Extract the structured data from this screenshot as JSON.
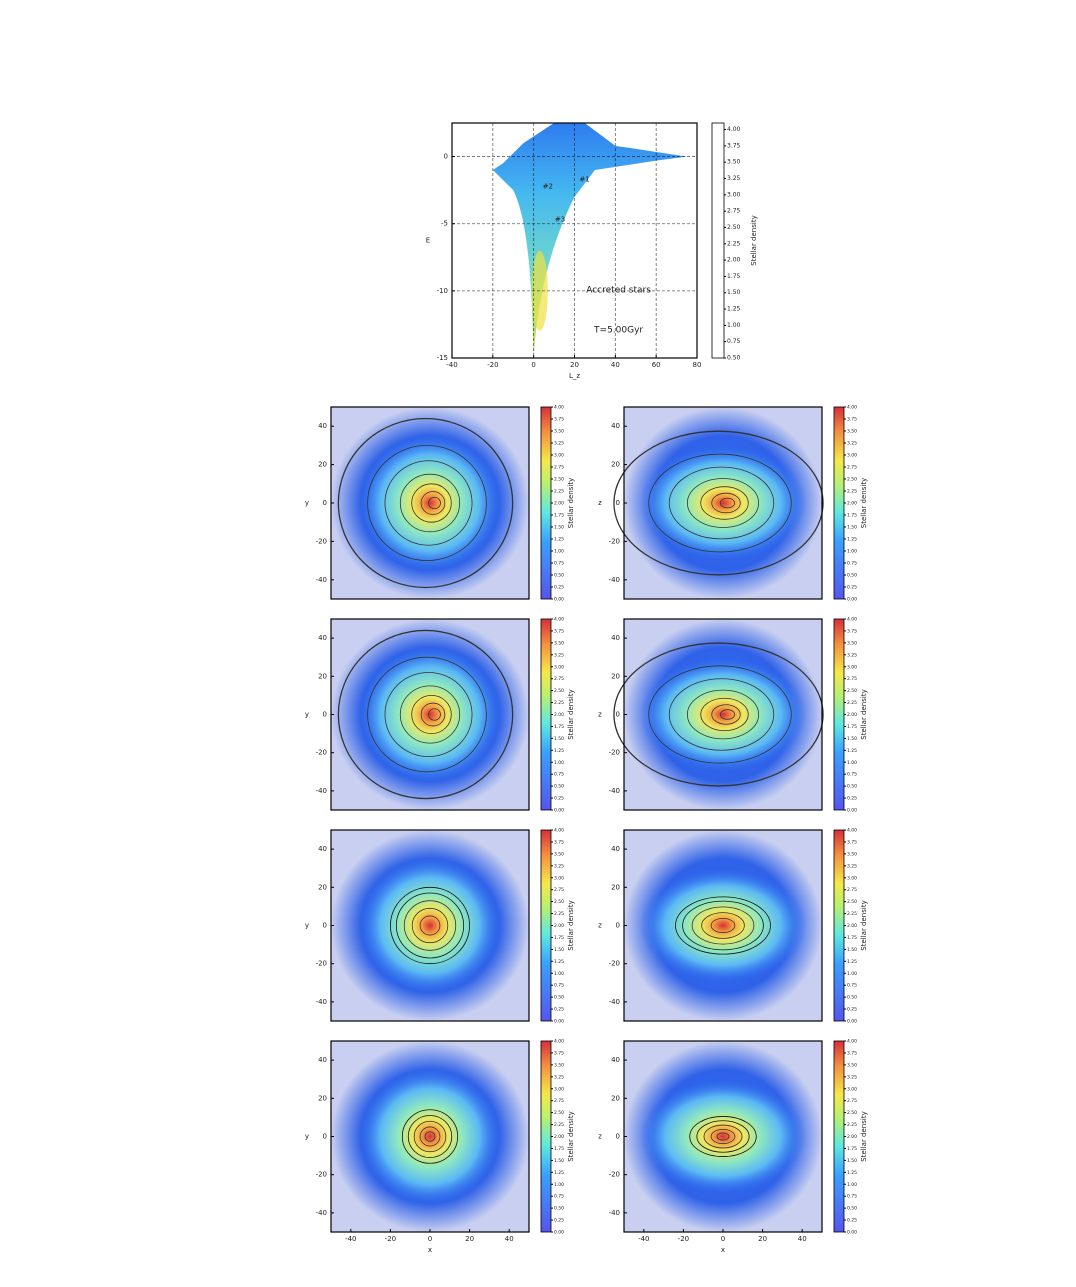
{
  "chart_data": [
    {
      "type": "heatmap",
      "xlabel": "L_z",
      "ylabel": "E",
      "xlim": [
        -40,
        80
      ],
      "ylim": [
        -15,
        2.5
      ],
      "xticks": [
        -40,
        -20,
        0,
        20,
        40,
        60,
        80
      ],
      "yticks": [
        0,
        -5,
        -10,
        -15
      ],
      "grid": true,
      "colorbar_label": "Stellar density",
      "colorbar_lim": [
        0.5,
        4.1
      ],
      "colorbar_ticks": [
        {
          "value": 0.5,
          "label": "0.50"
        },
        {
          "value": 0.75,
          "label": "0.75"
        },
        {
          "value": 1,
          "label": "1.00"
        },
        {
          "value": 1.25,
          "label": "1.25"
        },
        {
          "value": 1.5,
          "label": "1.50"
        },
        {
          "value": 1.75,
          "label": "1.75"
        },
        {
          "value": 2,
          "label": "2.00"
        },
        {
          "value": 2.25,
          "label": "2.25"
        },
        {
          "value": 2.5,
          "label": "2.50"
        },
        {
          "value": 2.75,
          "label": "2.75"
        },
        {
          "value": 3,
          "label": "3.00"
        },
        {
          "value": 3.25,
          "label": "3.25"
        },
        {
          "value": 3.5,
          "label": "3.50"
        },
        {
          "value": 3.75,
          "label": "3.75"
        },
        {
          "value": 4,
          "label": "4.00"
        }
      ],
      "annotations": [
        "#1",
        "#2",
        "#3",
        "Accreted stars",
        "T=5.00Gyr"
      ]
    },
    {
      "type": "density-map",
      "ylabel": "y",
      "xlim": [
        -50,
        50
      ],
      "ylim": [
        -50,
        50
      ],
      "yticks": [
        40,
        20,
        0,
        -20,
        -40
      ],
      "colorbar_label": "Stellar density",
      "colorbar_lim": [
        0,
        4
      ],
      "colorbar_ticks": [
        {
          "value": 0,
          "label": "0.00"
        },
        {
          "value": 0.25,
          "label": "0.25"
        },
        {
          "value": 0.5,
          "label": "0.50"
        },
        {
          "value": 0.75,
          "label": "0.75"
        },
        {
          "value": 1,
          "label": "1.00"
        },
        {
          "value": 1.25,
          "label": "1.25"
        },
        {
          "value": 1.5,
          "label": "1.50"
        },
        {
          "value": 1.75,
          "label": "1.75"
        },
        {
          "value": 2,
          "label": "2.00"
        },
        {
          "value": 2.25,
          "label": "2.25"
        },
        {
          "value": 2.5,
          "label": "2.50"
        },
        {
          "value": 2.75,
          "label": "2.75"
        },
        {
          "value": 3,
          "label": "3.00"
        },
        {
          "value": 3.25,
          "label": "3.25"
        },
        {
          "value": 3.5,
          "label": "3.50"
        },
        {
          "value": 3.75,
          "label": "3.75"
        },
        {
          "value": 4,
          "label": "4.00"
        }
      ]
    },
    {
      "type": "density-map",
      "ylabel": "z",
      "xlim": [
        -50,
        50
      ],
      "ylim": [
        -50,
        50
      ],
      "yticks": [
        40,
        20,
        0,
        -20,
        -40
      ],
      "colorbar_label": "Stellar density",
      "colorbar_lim": [
        0,
        4
      ],
      "colorbar_ticks": [
        {
          "value": 0,
          "label": "0.00"
        },
        {
          "value": 0.25,
          "label": "0.25"
        },
        {
          "value": 0.5,
          "label": "0.50"
        },
        {
          "value": 0.75,
          "label": "0.75"
        },
        {
          "value": 1,
          "label": "1.00"
        },
        {
          "value": 1.25,
          "label": "1.25"
        },
        {
          "value": 1.5,
          "label": "1.50"
        },
        {
          "value": 1.75,
          "label": "1.75"
        },
        {
          "value": 2,
          "label": "2.00"
        },
        {
          "value": 2.25,
          "label": "2.25"
        },
        {
          "value": 2.5,
          "label": "2.50"
        },
        {
          "value": 2.75,
          "label": "2.75"
        },
        {
          "value": 3,
          "label": "3.00"
        },
        {
          "value": 3.25,
          "label": "3.25"
        },
        {
          "value": 3.5,
          "label": "3.50"
        },
        {
          "value": 3.75,
          "label": "3.75"
        },
        {
          "value": 4,
          "label": "4.00"
        }
      ]
    },
    {
      "type": "density-map",
      "ylabel": "y",
      "xlim": [
        -50,
        50
      ],
      "ylim": [
        -50,
        50
      ],
      "yticks": [
        40,
        20,
        0,
        -20,
        -40
      ],
      "colorbar_label": "Stellar density",
      "colorbar_lim": [
        0,
        4
      ],
      "colorbar_ticks": [
        {
          "value": 0,
          "label": "0.00"
        },
        {
          "value": 0.25,
          "label": "0.25"
        },
        {
          "value": 0.5,
          "label": "0.50"
        },
        {
          "value": 0.75,
          "label": "0.75"
        },
        {
          "value": 1,
          "label": "1.00"
        },
        {
          "value": 1.25,
          "label": "1.25"
        },
        {
          "value": 1.5,
          "label": "1.50"
        },
        {
          "value": 1.75,
          "label": "1.75"
        },
        {
          "value": 2,
          "label": "2.00"
        },
        {
          "value": 2.25,
          "label": "2.25"
        },
        {
          "value": 2.5,
          "label": "2.50"
        },
        {
          "value": 2.75,
          "label": "2.75"
        },
        {
          "value": 3,
          "label": "3.00"
        },
        {
          "value": 3.25,
          "label": "3.25"
        },
        {
          "value": 3.5,
          "label": "3.50"
        },
        {
          "value": 3.75,
          "label": "3.75"
        },
        {
          "value": 4,
          "label": "4.00"
        }
      ]
    },
    {
      "type": "density-map",
      "ylabel": "z",
      "xlim": [
        -50,
        50
      ],
      "ylim": [
        -50,
        50
      ],
      "yticks": [
        40,
        20,
        0,
        -20,
        -40
      ],
      "colorbar_label": "Stellar density",
      "colorbar_lim": [
        0,
        4
      ],
      "colorbar_ticks": [
        {
          "value": 0,
          "label": "0.00"
        },
        {
          "value": 0.25,
          "label": "0.25"
        },
        {
          "value": 0.5,
          "label": "0.50"
        },
        {
          "value": 0.75,
          "label": "0.75"
        },
        {
          "value": 1,
          "label": "1.00"
        },
        {
          "value": 1.25,
          "label": "1.25"
        },
        {
          "value": 1.5,
          "label": "1.50"
        },
        {
          "value": 1.75,
          "label": "1.75"
        },
        {
          "value": 2,
          "label": "2.00"
        },
        {
          "value": 2.25,
          "label": "2.25"
        },
        {
          "value": 2.5,
          "label": "2.50"
        },
        {
          "value": 2.75,
          "label": "2.75"
        },
        {
          "value": 3,
          "label": "3.00"
        },
        {
          "value": 3.25,
          "label": "3.25"
        },
        {
          "value": 3.5,
          "label": "3.50"
        },
        {
          "value": 3.75,
          "label": "3.75"
        },
        {
          "value": 4,
          "label": "4.00"
        }
      ]
    },
    {
      "type": "density-map",
      "ylabel": "y",
      "xlim": [
        -50,
        50
      ],
      "ylim": [
        -50,
        50
      ],
      "yticks": [
        40,
        20,
        0,
        -20,
        -40
      ],
      "colorbar_label": "Stellar density",
      "colorbar_lim": [
        0,
        4
      ],
      "colorbar_ticks": [
        {
          "value": 0,
          "label": "0.00"
        },
        {
          "value": 0.25,
          "label": "0.25"
        },
        {
          "value": 0.5,
          "label": "0.50"
        },
        {
          "value": 0.75,
          "label": "0.75"
        },
        {
          "value": 1,
          "label": "1.00"
        },
        {
          "value": 1.25,
          "label": "1.25"
        },
        {
          "value": 1.5,
          "label": "1.50"
        },
        {
          "value": 1.75,
          "label": "1.75"
        },
        {
          "value": 2,
          "label": "2.00"
        },
        {
          "value": 2.25,
          "label": "2.25"
        },
        {
          "value": 2.5,
          "label": "2.50"
        },
        {
          "value": 2.75,
          "label": "2.75"
        },
        {
          "value": 3,
          "label": "3.00"
        },
        {
          "value": 3.25,
          "label": "3.25"
        },
        {
          "value": 3.5,
          "label": "3.50"
        },
        {
          "value": 3.75,
          "label": "3.75"
        },
        {
          "value": 4,
          "label": "4.00"
        }
      ]
    },
    {
      "type": "density-map",
      "ylabel": "z",
      "xlim": [
        -50,
        50
      ],
      "ylim": [
        -50,
        50
      ],
      "yticks": [
        40,
        20,
        0,
        -20,
        -40
      ],
      "colorbar_label": "Stellar density",
      "colorbar_lim": [
        0,
        4
      ],
      "colorbar_ticks": [
        {
          "value": 0,
          "label": "0.00"
        },
        {
          "value": 0.25,
          "label": "0.25"
        },
        {
          "value": 0.5,
          "label": "0.50"
        },
        {
          "value": 0.75,
          "label": "0.75"
        },
        {
          "value": 1,
          "label": "1.00"
        },
        {
          "value": 1.25,
          "label": "1.25"
        },
        {
          "value": 1.5,
          "label": "1.50"
        },
        {
          "value": 1.75,
          "label": "1.75"
        },
        {
          "value": 2,
          "label": "2.00"
        },
        {
          "value": 2.25,
          "label": "2.25"
        },
        {
          "value": 2.5,
          "label": "2.50"
        },
        {
          "value": 2.75,
          "label": "2.75"
        },
        {
          "value": 3,
          "label": "3.00"
        },
        {
          "value": 3.25,
          "label": "3.25"
        },
        {
          "value": 3.5,
          "label": "3.50"
        },
        {
          "value": 3.75,
          "label": "3.75"
        },
        {
          "value": 4,
          "label": "4.00"
        }
      ]
    },
    {
      "type": "density-map",
      "ylabel": "y",
      "xlabel": "x",
      "xlim": [
        -50,
        50
      ],
      "ylim": [
        -50,
        50
      ],
      "xticks": [
        -40,
        -20,
        0,
        20,
        40
      ],
      "yticks": [
        40,
        20,
        0,
        -20,
        -40
      ],
      "colorbar_label": "Stellar density",
      "colorbar_lim": [
        0,
        4
      ],
      "colorbar_ticks": [
        {
          "value": 0,
          "label": "0.00"
        },
        {
          "value": 0.25,
          "label": "0.25"
        },
        {
          "value": 0.5,
          "label": "0.50"
        },
        {
          "value": 0.75,
          "label": "0.75"
        },
        {
          "value": 1,
          "label": "1.00"
        },
        {
          "value": 1.25,
          "label": "1.25"
        },
        {
          "value": 1.5,
          "label": "1.50"
        },
        {
          "value": 1.75,
          "label": "1.75"
        },
        {
          "value": 2,
          "label": "2.00"
        },
        {
          "value": 2.25,
          "label": "2.25"
        },
        {
          "value": 2.5,
          "label": "2.50"
        },
        {
          "value": 2.75,
          "label": "2.75"
        },
        {
          "value": 3,
          "label": "3.00"
        },
        {
          "value": 3.25,
          "label": "3.25"
        },
        {
          "value": 3.5,
          "label": "3.50"
        },
        {
          "value": 3.75,
          "label": "3.75"
        },
        {
          "value": 4,
          "label": "4.00"
        }
      ]
    },
    {
      "type": "density-map",
      "ylabel": "z",
      "xlabel": "x",
      "xlim": [
        -50,
        50
      ],
      "ylim": [
        -50,
        50
      ],
      "xticks": [
        -40,
        -20,
        0,
        20,
        40
      ],
      "yticks": [
        40,
        20,
        0,
        -20,
        -40
      ],
      "colorbar_label": "Stellar density",
      "colorbar_lim": [
        0,
        4
      ],
      "colorbar_ticks": [
        {
          "value": 0,
          "label": "0.00"
        },
        {
          "value": 0.25,
          "label": "0.25"
        },
        {
          "value": 0.5,
          "label": "0.50"
        },
        {
          "value": 0.75,
          "label": "0.75"
        },
        {
          "value": 1,
          "label": "1.00"
        },
        {
          "value": 1.25,
          "label": "1.25"
        },
        {
          "value": 1.5,
          "label": "1.50"
        },
        {
          "value": 1.75,
          "label": "1.75"
        },
        {
          "value": 2,
          "label": "2.00"
        },
        {
          "value": 2.25,
          "label": "2.25"
        },
        {
          "value": 2.5,
          "label": "2.50"
        },
        {
          "value": 2.75,
          "label": "2.75"
        },
        {
          "value": 3,
          "label": "3.00"
        },
        {
          "value": 3.25,
          "label": "3.25"
        },
        {
          "value": 3.5,
          "label": "3.50"
        },
        {
          "value": 3.75,
          "label": "3.75"
        },
        {
          "value": 4,
          "label": "4.00"
        }
      ]
    }
  ]
}
